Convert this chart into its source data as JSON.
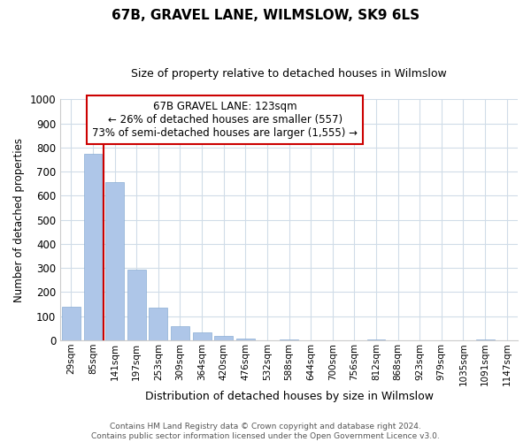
{
  "title": "67B, GRAVEL LANE, WILMSLOW, SK9 6LS",
  "subtitle": "Size of property relative to detached houses in Wilmslow",
  "xlabel": "Distribution of detached houses by size in Wilmslow",
  "ylabel": "Number of detached properties",
  "bar_labels": [
    "29sqm",
    "85sqm",
    "141sqm",
    "197sqm",
    "253sqm",
    "309sqm",
    "364sqm",
    "420sqm",
    "476sqm",
    "532sqm",
    "588sqm",
    "644sqm",
    "700sqm",
    "756sqm",
    "812sqm",
    "868sqm",
    "923sqm",
    "979sqm",
    "1035sqm",
    "1091sqm",
    "1147sqm"
  ],
  "bar_values": [
    140,
    775,
    655,
    295,
    135,
    57,
    33,
    17,
    8,
    0,
    5,
    0,
    0,
    0,
    3,
    0,
    0,
    0,
    0,
    4,
    0
  ],
  "bar_color": "#aec6e8",
  "bar_edge_color": "#8aadd4",
  "vline_x_index": 1.5,
  "vline_color": "#cc0000",
  "annotation_title": "67B GRAVEL LANE: 123sqm",
  "annotation_line1": "← 26% of detached houses are smaller (557)",
  "annotation_line2": "73% of semi-detached houses are larger (1,555) →",
  "annotation_box_color": "#ffffff",
  "annotation_box_edge": "#cc0000",
  "footer_line1": "Contains HM Land Registry data © Crown copyright and database right 2024.",
  "footer_line2": "Contains public sector information licensed under the Open Government Licence v3.0.",
  "ylim": [
    0,
    1000
  ],
  "yticks": [
    0,
    100,
    200,
    300,
    400,
    500,
    600,
    700,
    800,
    900,
    1000
  ],
  "background_color": "#ffffff",
  "grid_color": "#d0dce8",
  "title_fontsize": 11,
  "subtitle_fontsize": 9
}
